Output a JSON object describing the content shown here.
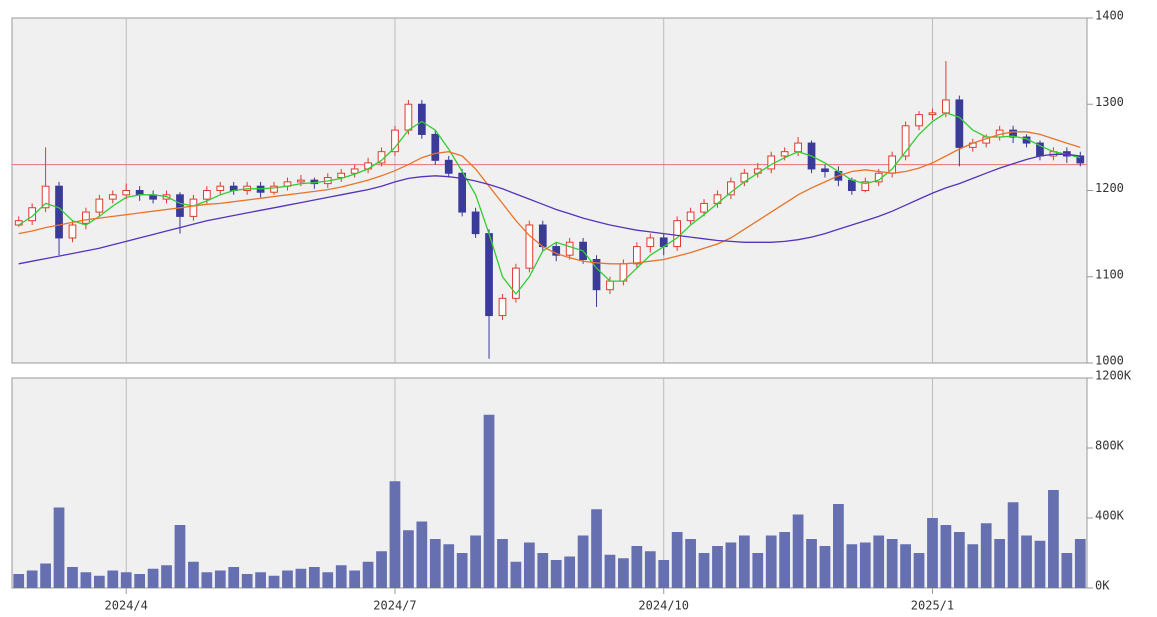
{
  "chart_data": [
    {
      "type": "candlestick",
      "up_color": "#e03a30",
      "down_color": "#3a3a98",
      "open": [
        1160,
        1165,
        1180,
        1205,
        1145,
        1162,
        1175,
        1190,
        1195,
        1200,
        1195,
        1190,
        1195,
        1170,
        1190,
        1200,
        1205,
        1200,
        1205,
        1198,
        1205,
        1210,
        1212,
        1208,
        1215,
        1220,
        1225,
        1232,
        1245,
        1270,
        1300,
        1265,
        1235,
        1220,
        1175,
        1150,
        1055,
        1075,
        1110,
        1160,
        1135,
        1125,
        1140,
        1120,
        1085,
        1095,
        1115,
        1135,
        1145,
        1135,
        1165,
        1175,
        1185,
        1195,
        1210,
        1220,
        1225,
        1240,
        1245,
        1255,
        1225,
        1222,
        1212,
        1200,
        1210,
        1220,
        1240,
        1275,
        1288,
        1290,
        1305,
        1250,
        1255,
        1262,
        1270,
        1262,
        1255,
        1240,
        1245,
        1240
      ],
      "high": [
        1170,
        1185,
        1250,
        1210,
        1165,
        1180,
        1195,
        1200,
        1208,
        1205,
        1200,
        1200,
        1198,
        1195,
        1205,
        1210,
        1210,
        1210,
        1210,
        1210,
        1215,
        1218,
        1215,
        1220,
        1225,
        1230,
        1238,
        1250,
        1275,
        1305,
        1305,
        1270,
        1240,
        1225,
        1180,
        1155,
        1080,
        1115,
        1165,
        1165,
        1140,
        1145,
        1145,
        1125,
        1100,
        1120,
        1140,
        1150,
        1150,
        1170,
        1180,
        1190,
        1200,
        1215,
        1225,
        1232,
        1245,
        1250,
        1262,
        1258,
        1230,
        1228,
        1215,
        1215,
        1225,
        1245,
        1280,
        1292,
        1295,
        1350,
        1310,
        1260,
        1265,
        1275,
        1275,
        1265,
        1258,
        1250,
        1250,
        1245
      ],
      "low": [
        1158,
        1160,
        1175,
        1125,
        1140,
        1155,
        1170,
        1185,
        1190,
        1188,
        1185,
        1185,
        1150,
        1165,
        1185,
        1195,
        1195,
        1195,
        1192,
        1195,
        1200,
        1205,
        1202,
        1203,
        1210,
        1215,
        1220,
        1228,
        1240,
        1265,
        1260,
        1230,
        1215,
        1170,
        1145,
        1005,
        1050,
        1070,
        1105,
        1130,
        1118,
        1120,
        1115,
        1065,
        1080,
        1090,
        1110,
        1128,
        1125,
        1130,
        1160,
        1170,
        1180,
        1190,
        1205,
        1215,
        1220,
        1235,
        1240,
        1220,
        1215,
        1205,
        1195,
        1198,
        1205,
        1215,
        1235,
        1270,
        1282,
        1285,
        1228,
        1245,
        1250,
        1258,
        1255,
        1250,
        1235,
        1235,
        1232,
        1228
      ],
      "close": [
        1165,
        1180,
        1205,
        1145,
        1160,
        1175,
        1190,
        1195,
        1200,
        1195,
        1190,
        1195,
        1170,
        1190,
        1200,
        1205,
        1200,
        1205,
        1198,
        1205,
        1210,
        1212,
        1208,
        1215,
        1220,
        1225,
        1232,
        1245,
        1270,
        1300,
        1265,
        1235,
        1220,
        1175,
        1150,
        1055,
        1075,
        1110,
        1160,
        1135,
        1125,
        1140,
        1120,
        1085,
        1095,
        1115,
        1135,
        1145,
        1135,
        1165,
        1175,
        1185,
        1195,
        1210,
        1220,
        1225,
        1240,
        1245,
        1255,
        1225,
        1222,
        1212,
        1200,
        1210,
        1220,
        1240,
        1275,
        1288,
        1290,
        1305,
        1250,
        1255,
        1262,
        1270,
        1262,
        1255,
        1240,
        1245,
        1240,
        1232
      ],
      "series": [
        {
          "color": "#33cc33",
          "values": [
            1160,
            1170,
            1185,
            1180,
            1165,
            1160,
            1170,
            1182,
            1192,
            1195,
            1195,
            1193,
            1185,
            1182,
            1188,
            1195,
            1200,
            1202,
            1202,
            1203,
            1205,
            1208,
            1209,
            1211,
            1214,
            1219,
            1225,
            1235,
            1250,
            1270,
            1280,
            1270,
            1248,
            1222,
            1195,
            1150,
            1100,
            1080,
            1100,
            1130,
            1140,
            1135,
            1130,
            1110,
            1095,
            1095,
            1110,
            1125,
            1135,
            1145,
            1160,
            1172,
            1185,
            1198,
            1210,
            1220,
            1230,
            1238,
            1245,
            1240,
            1232,
            1222,
            1212,
            1208,
            1212,
            1225,
            1245,
            1265,
            1280,
            1290,
            1285,
            1270,
            1262,
            1262,
            1263,
            1260,
            1252,
            1245,
            1242,
            1238
          ]
        },
        {
          "color": "#e8742a",
          "values": [
            1150,
            1153,
            1157,
            1160,
            1163,
            1166,
            1168,
            1170,
            1172,
            1174,
            1176,
            1178,
            1180,
            1182,
            1184,
            1185,
            1187,
            1189,
            1191,
            1193,
            1195,
            1197,
            1199,
            1201,
            1204,
            1208,
            1212,
            1217,
            1223,
            1230,
            1238,
            1243,
            1245,
            1240,
            1225,
            1205,
            1185,
            1165,
            1148,
            1135,
            1127,
            1122,
            1118,
            1116,
            1115,
            1115,
            1116,
            1118,
            1120,
            1124,
            1128,
            1133,
            1138,
            1145,
            1155,
            1165,
            1175,
            1185,
            1195,
            1203,
            1210,
            1217,
            1222,
            1224,
            1222,
            1220,
            1222,
            1226,
            1232,
            1240,
            1248,
            1255,
            1260,
            1265,
            1268,
            1268,
            1265,
            1260,
            1255,
            1250
          ]
        },
        {
          "color": "#5533bb",
          "values": [
            1115,
            1118,
            1121,
            1124,
            1127,
            1130,
            1133,
            1137,
            1141,
            1145,
            1149,
            1153,
            1157,
            1161,
            1165,
            1168,
            1171,
            1174,
            1177,
            1180,
            1183,
            1186,
            1189,
            1192,
            1195,
            1198,
            1201,
            1205,
            1210,
            1214,
            1216,
            1217,
            1216,
            1214,
            1211,
            1207,
            1202,
            1196,
            1190,
            1184,
            1178,
            1173,
            1168,
            1164,
            1160,
            1157,
            1154,
            1152,
            1150,
            1148,
            1146,
            1144,
            1142,
            1141,
            1140,
            1140,
            1140,
            1141,
            1143,
            1146,
            1150,
            1155,
            1160,
            1165,
            1170,
            1176,
            1183,
            1190,
            1197,
            1203,
            1208,
            1214,
            1220,
            1226,
            1231,
            1236,
            1240,
            1242,
            1242,
            1240
          ]
        }
      ],
      "reference_line": 1230,
      "reference_color": "#f07070",
      "ylim": [
        1000,
        1400
      ],
      "yticks": [
        1000,
        1100,
        1200,
        1300,
        1400
      ]
    },
    {
      "type": "bar",
      "color": "#6670b0",
      "categories": [
        null,
        null,
        null,
        null,
        null,
        null,
        null,
        null,
        "2024/4",
        null,
        null,
        null,
        null,
        null,
        null,
        null,
        null,
        null,
        null,
        null,
        null,
        null,
        null,
        null,
        null,
        null,
        null,
        null,
        "2024/7",
        null,
        null,
        null,
        null,
        null,
        null,
        null,
        null,
        null,
        null,
        null,
        null,
        null,
        null,
        null,
        null,
        null,
        null,
        null,
        "2024/10",
        null,
        null,
        null,
        null,
        null,
        null,
        null,
        null,
        null,
        null,
        null,
        null,
        null,
        null,
        null,
        null,
        null,
        null,
        null,
        "2025/1",
        null,
        null,
        null,
        null,
        null,
        null,
        null,
        null,
        null,
        null,
        null
      ],
      "values": [
        80000,
        100000,
        140000,
        460000,
        120000,
        90000,
        70000,
        100000,
        90000,
        80000,
        110000,
        130000,
        360000,
        150000,
        90000,
        100000,
        120000,
        80000,
        90000,
        70000,
        100000,
        110000,
        120000,
        90000,
        130000,
        100000,
        150000,
        210000,
        610000,
        330000,
        380000,
        280000,
        250000,
        200000,
        300000,
        990000,
        280000,
        150000,
        260000,
        200000,
        160000,
        180000,
        300000,
        450000,
        190000,
        170000,
        240000,
        210000,
        160000,
        320000,
        280000,
        200000,
        240000,
        260000,
        300000,
        200000,
        300000,
        320000,
        420000,
        280000,
        240000,
        480000,
        250000,
        260000,
        300000,
        280000,
        250000,
        200000,
        400000,
        360000,
        320000,
        250000,
        370000,
        280000,
        490000,
        300000,
        270000,
        560000,
        200000,
        280000
      ],
      "ylim": [
        0,
        1200000
      ],
      "yticks": [
        {
          "value": 0,
          "label": "0K"
        },
        {
          "value": 400000,
          "label": "400K"
        },
        {
          "value": 800000,
          "label": "800K"
        },
        {
          "value": 1200000,
          "label": "1200K"
        }
      ]
    }
  ]
}
